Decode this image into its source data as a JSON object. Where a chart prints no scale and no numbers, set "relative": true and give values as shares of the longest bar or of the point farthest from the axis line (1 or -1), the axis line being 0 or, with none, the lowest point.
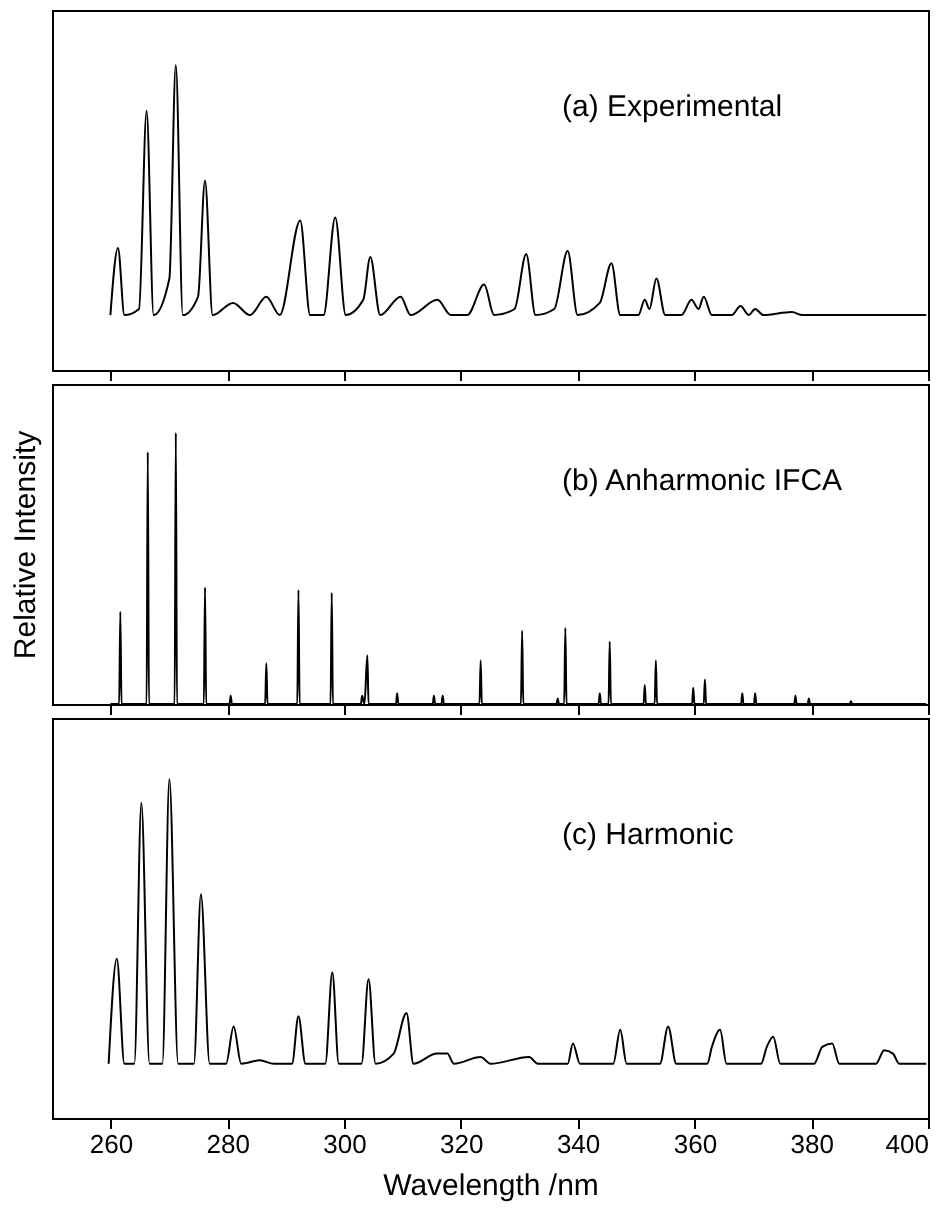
{
  "chart_data": [
    {
      "type": "line",
      "relative": true,
      "xlim": [
        250,
        400
      ],
      "xticks": [
        260,
        280,
        300,
        320,
        340,
        360,
        380,
        400
      ],
      "tick_labels": false,
      "annotations": [
        "(a) Experimental"
      ],
      "x": [
        260,
        261.3,
        262.4,
        264.9,
        266.2,
        267.4,
        270.1,
        271.2,
        272.4,
        275.0,
        276.2,
        277.5,
        281.0,
        283.9,
        286.7,
        289.0,
        292.5,
        294.2,
        296.5,
        298.5,
        300.3,
        303.3,
        304.5,
        306.2,
        309.7,
        311.4,
        316.0,
        318.3,
        321.1,
        324.0,
        325.7,
        329.2,
        331.2,
        332.8,
        336.0,
        338.3,
        340.0,
        343.8,
        345.8,
        347.3,
        350.4,
        351.5,
        352.3,
        353.5,
        355.0,
        357.8,
        359.5,
        360.7,
        361.6,
        363.0,
        366.4,
        367.9,
        369.3,
        370.4,
        371.8,
        376.7,
        378.5,
        385.4,
        391.0,
        399.7
      ],
      "series": [
        {
          "color": "#000000",
          "values": [
            0.18,
            0.4,
            0.18,
            0.2,
            0.85,
            0.18,
            0.3,
            1.0,
            0.18,
            0.24,
            0.62,
            0.18,
            0.22,
            0.18,
            0.24,
            0.18,
            0.49,
            0.18,
            0.18,
            0.5,
            0.18,
            0.23,
            0.37,
            0.18,
            0.24,
            0.18,
            0.23,
            0.18,
            0.18,
            0.28,
            0.18,
            0.2,
            0.38,
            0.18,
            0.2,
            0.39,
            0.18,
            0.22,
            0.35,
            0.18,
            0.18,
            0.23,
            0.2,
            0.3,
            0.18,
            0.18,
            0.23,
            0.2,
            0.24,
            0.18,
            0.18,
            0.21,
            0.18,
            0.2,
            0.18,
            0.19,
            0.18,
            0.18,
            0.18,
            0.18
          ]
        }
      ]
    },
    {
      "type": "line",
      "relative": true,
      "xlim": [
        250,
        400
      ],
      "xticks": [
        260,
        280,
        300,
        320,
        340,
        360,
        380,
        400
      ],
      "tick_labels": false,
      "ylabel": "Relative Intensity",
      "annotations": [
        "(b) Anharmonic IFCA"
      ],
      "x": [
        260,
        261.5,
        261.7,
        261.9,
        266.2,
        266.4,
        266.6,
        271.0,
        271.2,
        271.4,
        276.0,
        276.2,
        276.4,
        280.4,
        280.6,
        280.8,
        286.5,
        286.7,
        286.9,
        292.0,
        292.2,
        292.4,
        297.7,
        297.9,
        298.1,
        302.9,
        303.1,
        303.5,
        304.0,
        304.2,
        308.9,
        309.1,
        309.3,
        315.2,
        315.4,
        315.6,
        316.7,
        316.9,
        317.1,
        323.2,
        323.4,
        323.6,
        330.3,
        330.5,
        330.7,
        336.4,
        336.6,
        336.8,
        337.7,
        337.9,
        338.1,
        343.6,
        343.8,
        344.0,
        345.3,
        345.5,
        345.7,
        351.3,
        351.5,
        351.7,
        353.2,
        353.4,
        353.6,
        359.6,
        359.8,
        360.0,
        361.6,
        361.8,
        362.0,
        368.0,
        368.2,
        368.4,
        370.2,
        370.4,
        370.6,
        377.1,
        377.3,
        377.5,
        379.4,
        379.6,
        379.8,
        386.6,
        386.8,
        387.0,
        399.7
      ],
      "series": [
        {
          "color": "#000000",
          "values": [
            0,
            0,
            0.34,
            0,
            0,
            0.93,
            0,
            0,
            1.0,
            0,
            0,
            0.43,
            0,
            0,
            0.03,
            0,
            0,
            0.15,
            0,
            0,
            0.42,
            0,
            0,
            0.41,
            0,
            0,
            0.03,
            0,
            0.18,
            0,
            0,
            0.04,
            0,
            0,
            0.03,
            0,
            0,
            0.03,
            0,
            0,
            0.16,
            0,
            0,
            0.27,
            0,
            0,
            0.02,
            0,
            0,
            0.28,
            0,
            0,
            0.04,
            0,
            0,
            0.23,
            0,
            0,
            0.07,
            0,
            0,
            0.16,
            0,
            0,
            0.06,
            0,
            0,
            0.09,
            0,
            0,
            0.04,
            0,
            0,
            0.04,
            0,
            0,
            0.03,
            0,
            0,
            0.02,
            0,
            0,
            0.01,
            0,
            0
          ]
        }
      ]
    },
    {
      "type": "line",
      "relative": true,
      "xlim": [
        250,
        400
      ],
      "xticks": [
        260,
        280,
        300,
        320,
        340,
        360,
        380,
        400
      ],
      "tick_labels": "x",
      "xlabel": "Wavelength /nm",
      "annotations": [
        "(c) Harmonic"
      ],
      "x": [
        259.7,
        261.1,
        262.4,
        264.1,
        265.3,
        266.7,
        268.9,
        270.1,
        271.6,
        274.3,
        275.5,
        277.0,
        279.8,
        281.1,
        282.4,
        285.6,
        288.0,
        291.1,
        292.2,
        293.4,
        296.8,
        298.0,
        299.1,
        303.0,
        304.2,
        305.4,
        308.5,
        310.7,
        311.9,
        315.9,
        317.7,
        318.8,
        323.4,
        325.1,
        331.7,
        333.2,
        338.3,
        339.2,
        340.4,
        346.1,
        347.3,
        348.4,
        354.1,
        355.5,
        356.9,
        362.2,
        363.0,
        364.4,
        365.5,
        371.4,
        372.4,
        373.5,
        374.7,
        380.5,
        381.9,
        383.6,
        384.8,
        391.1,
        392.5,
        394.0,
        395.1,
        399.7
      ],
      "series": [
        {
          "color": "#000000",
          "values": [
            0.16,
            0.47,
            0.16,
            0.16,
            0.93,
            0.16,
            0.16,
            1.0,
            0.16,
            0.16,
            0.66,
            0.16,
            0.16,
            0.27,
            0.16,
            0.17,
            0.16,
            0.16,
            0.3,
            0.16,
            0.16,
            0.43,
            0.16,
            0.16,
            0.41,
            0.16,
            0.19,
            0.31,
            0.16,
            0.19,
            0.19,
            0.16,
            0.18,
            0.16,
            0.18,
            0.16,
            0.16,
            0.22,
            0.16,
            0.16,
            0.26,
            0.16,
            0.16,
            0.27,
            0.16,
            0.16,
            0.21,
            0.26,
            0.16,
            0.16,
            0.21,
            0.24,
            0.16,
            0.16,
            0.21,
            0.22,
            0.16,
            0.16,
            0.2,
            0.19,
            0.16,
            0.16
          ]
        }
      ]
    }
  ]
}
